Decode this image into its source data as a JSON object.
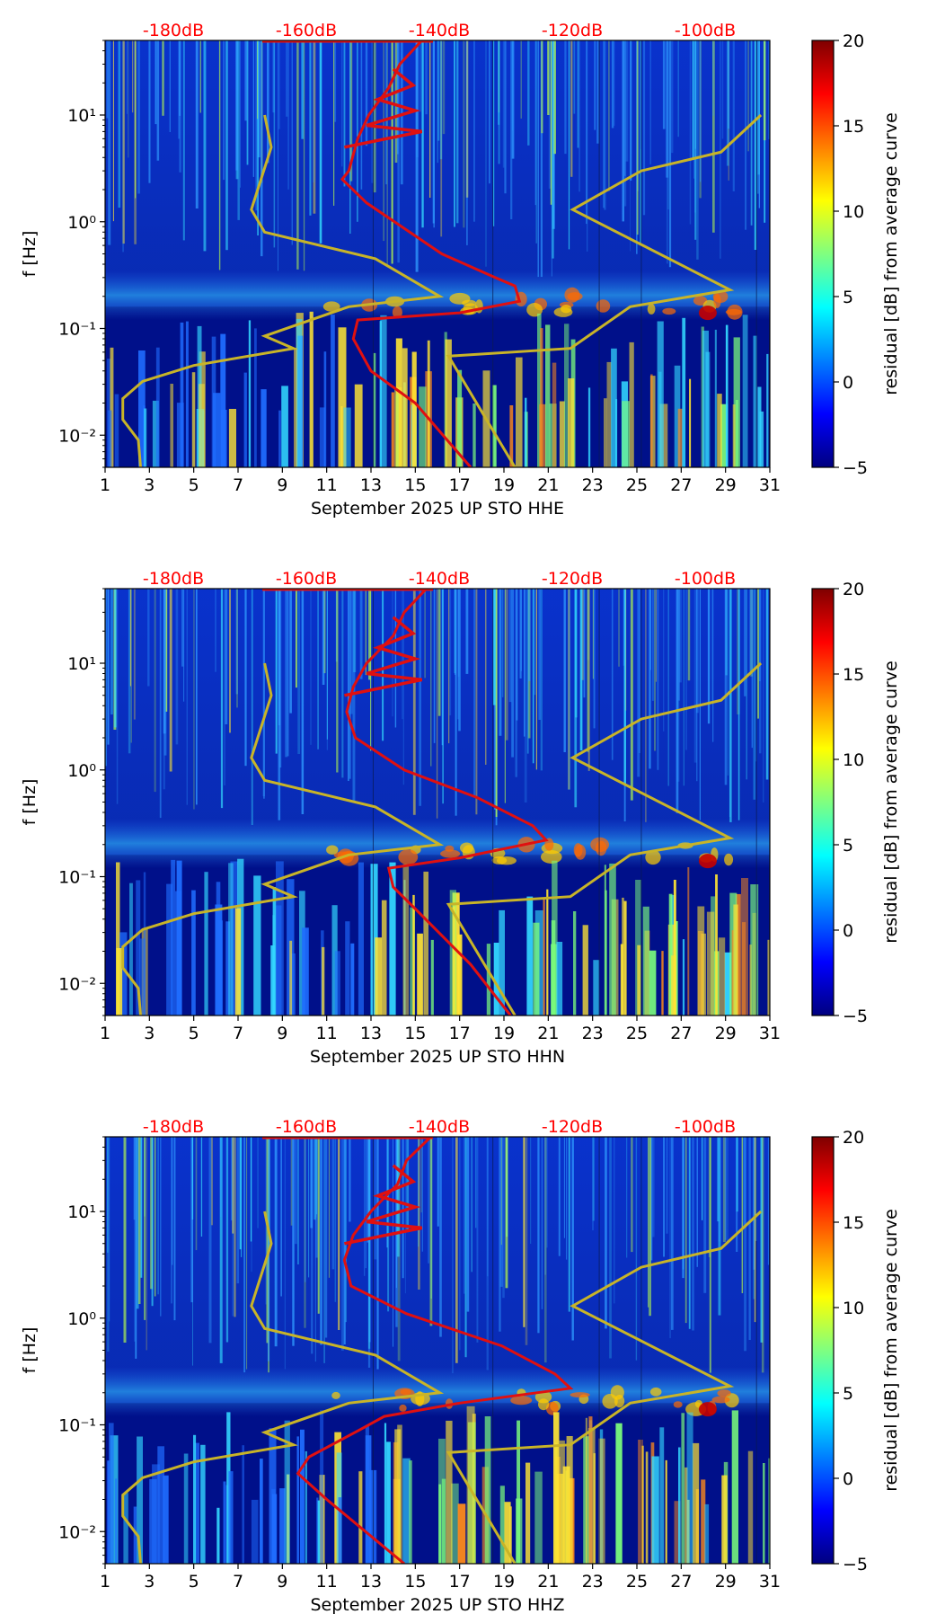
{
  "figure": {
    "colorbar_label": "residual [dB] from average curve",
    "colorbar_ticks": [
      "20",
      "15",
      "10",
      "5",
      "0",
      "−5"
    ],
    "colors": {
      "noise_model": "#c8b428",
      "median_psd": "#e01010",
      "db_label": "#ff0000",
      "background": "#00108a"
    }
  },
  "chart_data": [
    {
      "type": "heatmap",
      "title": "September 2025 UP STO  HHE",
      "xlabel": "September 2025 UP STO  HHE",
      "ylabel": "f [Hz]",
      "x_ticks": [
        "1",
        "3",
        "5",
        "7",
        "9",
        "11",
        "13",
        "15",
        "17",
        "19",
        "21",
        "23",
        "25",
        "27",
        "29",
        "31"
      ],
      "y_ticks": [
        "10¹",
        "10⁰",
        "10⁻¹",
        "10⁻²"
      ],
      "top_labels": [
        "-180dB",
        "-160dB",
        "-140dB",
        "-120dB",
        "-100dB"
      ],
      "xlim": [
        1,
        31
      ],
      "ylim_hz": [
        0.005,
        50
      ],
      "colorbar_range_db": [
        -5,
        20
      ]
    },
    {
      "type": "heatmap",
      "title": "September 2025 UP STO  HHN",
      "xlabel": "September 2025 UP STO  HHN",
      "ylabel": "f [Hz]",
      "x_ticks": [
        "1",
        "3",
        "5",
        "7",
        "9",
        "11",
        "13",
        "15",
        "17",
        "19",
        "21",
        "23",
        "25",
        "27",
        "29",
        "31"
      ],
      "y_ticks": [
        "10¹",
        "10⁰",
        "10⁻¹",
        "10⁻²"
      ],
      "top_labels": [
        "-180dB",
        "-160dB",
        "-140dB",
        "-120dB",
        "-100dB"
      ],
      "xlim": [
        1,
        31
      ],
      "ylim_hz": [
        0.005,
        50
      ],
      "colorbar_range_db": [
        -5,
        20
      ]
    },
    {
      "type": "heatmap",
      "title": "September 2025 UP STO  HHZ",
      "xlabel": "September 2025 UP STO  HHZ",
      "ylabel": "f [Hz]",
      "x_ticks": [
        "1",
        "3",
        "5",
        "7",
        "9",
        "11",
        "13",
        "15",
        "17",
        "19",
        "21",
        "23",
        "25",
        "27",
        "29",
        "31"
      ],
      "y_ticks": [
        "10¹",
        "10⁰",
        "10⁻¹",
        "10⁻²"
      ],
      "top_labels": [
        "-180dB",
        "-160dB",
        "-140dB",
        "-120dB",
        "-100dB"
      ],
      "xlim": [
        1,
        31
      ],
      "ylim_hz": [
        0.005,
        50
      ],
      "colorbar_range_db": [
        -5,
        20
      ]
    }
  ]
}
